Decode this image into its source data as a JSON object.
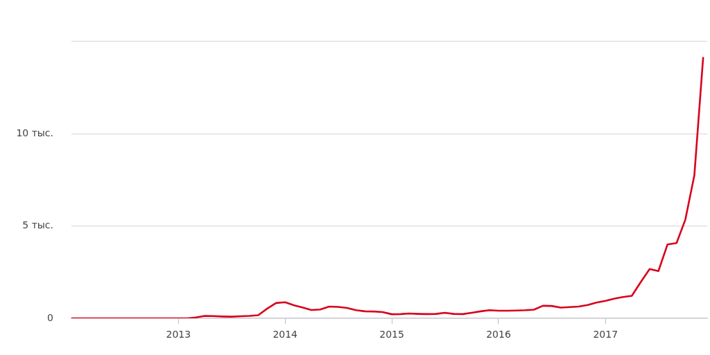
{
  "chart_data": {
    "type": "line",
    "x": [
      "2012-01",
      "2012-02",
      "2012-03",
      "2012-04",
      "2012-05",
      "2012-06",
      "2012-07",
      "2012-08",
      "2012-09",
      "2012-10",
      "2012-11",
      "2012-12",
      "2013-01",
      "2013-02",
      "2013-03",
      "2013-04",
      "2013-05",
      "2013-06",
      "2013-07",
      "2013-08",
      "2013-09",
      "2013-10",
      "2013-11",
      "2013-12",
      "2014-01",
      "2014-02",
      "2014-03",
      "2014-04",
      "2014-05",
      "2014-06",
      "2014-07",
      "2014-08",
      "2014-09",
      "2014-10",
      "2014-11",
      "2014-12",
      "2015-01",
      "2015-02",
      "2015-03",
      "2015-04",
      "2015-05",
      "2015-06",
      "2015-07",
      "2015-08",
      "2015-09",
      "2015-10",
      "2015-11",
      "2015-12",
      "2016-01",
      "2016-02",
      "2016-03",
      "2016-04",
      "2016-05",
      "2016-06",
      "2016-07",
      "2016-08",
      "2016-09",
      "2016-10",
      "2016-11",
      "2016-12",
      "2017-01",
      "2017-02",
      "2017-03",
      "2017-04",
      "2017-05",
      "2017-06",
      "2017-07",
      "2017-08",
      "2017-09",
      "2017-10",
      "2017-11",
      "2017-12"
    ],
    "series": [
      {
        "color": "#d9001b",
        "values": [
          0,
          0,
          0,
          0,
          0,
          0,
          0,
          0,
          0,
          0,
          0,
          0,
          0,
          0,
          0.05,
          0.13,
          0.12,
          0.1,
          0.09,
          0.11,
          0.13,
          0.17,
          0.53,
          0.83,
          0.87,
          0.7,
          0.59,
          0.45,
          0.48,
          0.64,
          0.62,
          0.56,
          0.44,
          0.38,
          0.37,
          0.34,
          0.22,
          0.23,
          0.26,
          0.24,
          0.23,
          0.24,
          0.3,
          0.24,
          0.23,
          0.3,
          0.38,
          0.44,
          0.41,
          0.41,
          0.42,
          0.44,
          0.47,
          0.68,
          0.67,
          0.58,
          0.61,
          0.64,
          0.72,
          0.85,
          0.95,
          1.07,
          1.15,
          1.22,
          1.95,
          2.67,
          2.56,
          4,
          4.08,
          5.34,
          7.75,
          14.12
        ]
      }
    ],
    "xlim": [
      "2012-01",
      "2017-12-15"
    ],
    "xticks": [
      {
        "value": "2013",
        "label": "2013"
      },
      {
        "value": "2014",
        "label": "2014"
      },
      {
        "value": "2015",
        "label": "2015"
      },
      {
        "value": "2016",
        "label": "2016"
      },
      {
        "value": "2017",
        "label": "2017"
      }
    ],
    "ylim": [
      0,
      15
    ],
    "yticks": [
      {
        "value": 0,
        "label": "0"
      },
      {
        "value": 5,
        "label": "5 тыс."
      },
      {
        "value": 10,
        "label": "10 тыс."
      },
      {
        "value": 15,
        "label": null
      }
    ],
    "grid": "y",
    "legend": false,
    "marker": "none",
    "line_style": "solid"
  }
}
